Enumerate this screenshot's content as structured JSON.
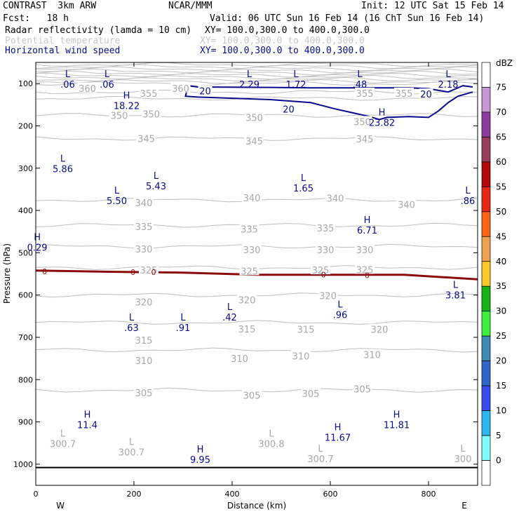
{
  "header": {
    "line1_left": "CONTRAST  3km ARW",
    "line1_mid": "NCAR/MMM",
    "line1_right": "Init: 12 UTC Sat 15 Feb 14",
    "line2_left": "Fcst:   18 h",
    "line2_right": "Valid: 06 UTC Sun 16 Feb 14 (16 ChT Sun 16 Feb 14)",
    "fields": [
      {
        "name": "Radar reflectivity (lamda = 10 cm)",
        "xy": "XY= 100.0,300.0 to 400.0,300.0",
        "color": "#000000"
      },
      {
        "name": "Potential temperature",
        "xy": "XY= 100.0,300.0 to 400.0,300.0",
        "color": "#c8c8c8"
      },
      {
        "name": "Horizontal wind speed",
        "xy": "XY= 100.0,300.0 to 400.0,300.0",
        "color": "#0a0a8c"
      }
    ]
  },
  "chart_data": {
    "type": "contour_cross_section",
    "xlabel": "Distance (km)",
    "ylabel": "Pressure (hPa)",
    "xlim": [
      0,
      900
    ],
    "ylim": [
      1050,
      50
    ],
    "x_ticks": [
      "0",
      "200",
      "400",
      "600",
      "800"
    ],
    "y_ticks": [
      "100",
      "200",
      "300",
      "400",
      "500",
      "600",
      "700",
      "800",
      "900",
      "1000"
    ],
    "x_end_labels": {
      "left": "W",
      "right": "E"
    },
    "surface_pressure": 1008,
    "theta_contours": [
      {
        "label": "360",
        "p": 120
      },
      {
        "label": "355",
        "p": 135
      },
      {
        "label": "350",
        "p": 175
      },
      {
        "label": "345",
        "p": 230
      },
      {
        "label": "340",
        "p": 375
      },
      {
        "label": "335",
        "p": 435
      },
      {
        "label": "330",
        "p": 485
      },
      {
        "label": "325",
        "p": 535
      },
      {
        "label": "320",
        "p": 600
      },
      {
        "label": "315",
        "p": 665
      },
      {
        "label": "310",
        "p": 730
      },
      {
        "label": "305",
        "p": 825
      }
    ],
    "theta_contour_labels": [
      {
        "text": "360",
        "x": 105,
        "p": 111
      },
      {
        "text": "355",
        "x": 230,
        "p": 123
      },
      {
        "text": "360",
        "x": 295,
        "p": 111
      },
      {
        "text": "355",
        "x": 670,
        "p": 123
      },
      {
        "text": "355",
        "x": 750,
        "p": 123
      },
      {
        "text": "350",
        "x": 170,
        "p": 175
      },
      {
        "text": "350",
        "x": 235,
        "p": 172
      },
      {
        "text": "350",
        "x": 445,
        "p": 180
      },
      {
        "text": "350",
        "x": 665,
        "p": 190
      },
      {
        "text": "345",
        "x": 225,
        "p": 230
      },
      {
        "text": "345",
        "x": 445,
        "p": 236
      },
      {
        "text": "345",
        "x": 670,
        "p": 231
      },
      {
        "text": "340",
        "x": 220,
        "p": 382
      },
      {
        "text": "340",
        "x": 440,
        "p": 370
      },
      {
        "text": "340",
        "x": 610,
        "p": 371
      },
      {
        "text": "340",
        "x": 755,
        "p": 386
      },
      {
        "text": "335",
        "x": 220,
        "p": 438
      },
      {
        "text": "335",
        "x": 435,
        "p": 444
      },
      {
        "text": "335",
        "x": 590,
        "p": 441
      },
      {
        "text": "330",
        "x": 220,
        "p": 491
      },
      {
        "text": "330",
        "x": 440,
        "p": 493
      },
      {
        "text": "330",
        "x": 590,
        "p": 493
      },
      {
        "text": "330",
        "x": 670,
        "p": 493
      },
      {
        "text": "325",
        "x": 230,
        "p": 541
      },
      {
        "text": "325",
        "x": 435,
        "p": 543
      },
      {
        "text": "325",
        "x": 580,
        "p": 541
      },
      {
        "text": "325",
        "x": 670,
        "p": 540
      },
      {
        "text": "320",
        "x": 220,
        "p": 616
      },
      {
        "text": "320",
        "x": 430,
        "p": 611
      },
      {
        "text": "320",
        "x": 595,
        "p": 601
      },
      {
        "text": "320",
        "x": 700,
        "p": 681
      },
      {
        "text": "315",
        "x": 220,
        "p": 707
      },
      {
        "text": "315",
        "x": 430,
        "p": 680
      },
      {
        "text": "315",
        "x": 550,
        "p": 681
      },
      {
        "text": "310",
        "x": 220,
        "p": 755
      },
      {
        "text": "310",
        "x": 415,
        "p": 750
      },
      {
        "text": "310",
        "x": 540,
        "p": 744
      },
      {
        "text": "310",
        "x": 685,
        "p": 741
      },
      {
        "text": "305",
        "x": 220,
        "p": 831
      },
      {
        "text": "305",
        "x": 440,
        "p": 837
      },
      {
        "text": "305",
        "x": 560,
        "p": 833
      },
      {
        "text": "305",
        "x": 665,
        "p": 822
      }
    ],
    "wind_contours": [
      {
        "label": "20",
        "points": [
          [
            310,
            105
          ],
          [
            330,
            108
          ],
          [
            480,
            109
          ],
          [
            560,
            110
          ],
          [
            675,
            110
          ],
          [
            760,
            110
          ],
          [
            800,
            112
          ],
          [
            840,
            120
          ],
          [
            870,
            105
          ],
          [
            890,
            108
          ]
        ]
      }
    ],
    "wind_contour_labels": [
      {
        "text": "20",
        "x": 345,
        "p": 117
      },
      {
        "text": "20",
        "x": 515,
        "p": 160
      },
      {
        "text": "20",
        "x": 795,
        "p": 125
      }
    ],
    "reflectivity_zero_line": [
      [
        0,
        542
      ],
      [
        150,
        545
      ],
      [
        300,
        547
      ],
      [
        450,
        552
      ],
      [
        600,
        552
      ],
      [
        750,
        552
      ],
      [
        900,
        563
      ]
    ],
    "reflectivity_zero_labels": [
      {
        "text": "0",
        "x": 18,
        "p": 544
      },
      {
        "text": "0",
        "x": 198,
        "p": 546
      },
      {
        "text": "0",
        "x": 240,
        "p": 546
      },
      {
        "text": "0",
        "x": 586,
        "p": 552
      },
      {
        "text": "0",
        "x": 675,
        "p": 553
      }
    ],
    "extrema": [
      {
        "type": "L",
        "value": ".06",
        "x": 65,
        "p": 85,
        "field": "wind"
      },
      {
        "type": "L",
        "value": ".06",
        "x": 145,
        "p": 85,
        "field": "wind"
      },
      {
        "type": "L",
        "value": "2.29",
        "x": 435,
        "p": 85,
        "field": "wind"
      },
      {
        "type": "L",
        "value": "1.72",
        "x": 530,
        "p": 85,
        "field": "wind"
      },
      {
        "type": "L",
        "value": ".48",
        "x": 660,
        "p": 85,
        "field": "wind"
      },
      {
        "type": "L",
        "value": "2.18",
        "x": 840,
        "p": 85,
        "field": "wind"
      },
      {
        "type": "H",
        "value": "18.22",
        "x": 185,
        "p": 135,
        "field": "wind"
      },
      {
        "type": "H",
        "value": "23.82",
        "x": 705,
        "p": 175,
        "field": "wind"
      },
      {
        "type": "L",
        "value": "5.86",
        "x": 55,
        "p": 285,
        "field": "wind"
      },
      {
        "type": "L",
        "value": "5.43",
        "x": 245,
        "p": 325,
        "field": "wind"
      },
      {
        "type": "L",
        "value": "5.50",
        "x": 165,
        "p": 360,
        "field": "wind"
      },
      {
        "type": "L",
        "value": "1.65",
        "x": 545,
        "p": 330,
        "field": "wind"
      },
      {
        "type": "L",
        "value": ".86",
        "x": 880,
        "p": 360,
        "field": "wind"
      },
      {
        "type": "H",
        "value": "6.71",
        "x": 675,
        "p": 430,
        "field": "wind"
      },
      {
        "type": "H",
        "value": "0.29",
        "x": 3,
        "p": 470,
        "field": "wind"
      },
      {
        "type": "L",
        "value": "3.81",
        "x": 855,
        "p": 583,
        "field": "wind"
      },
      {
        "type": "L",
        "value": ".42",
        "x": 395,
        "p": 635,
        "field": "wind"
      },
      {
        "type": "L",
        "value": ".96",
        "x": 620,
        "p": 630,
        "field": "wind"
      },
      {
        "type": "L",
        "value": ".63",
        "x": 195,
        "p": 660,
        "field": "wind"
      },
      {
        "type": "L",
        "value": ".91",
        "x": 300,
        "p": 660,
        "field": "wind"
      },
      {
        "type": "H",
        "value": "11.4",
        "x": 105,
        "p": 890,
        "field": "wind"
      },
      {
        "type": "H",
        "value": "11.67",
        "x": 615,
        "p": 920,
        "field": "wind"
      },
      {
        "type": "H",
        "value": "11.81",
        "x": 735,
        "p": 890,
        "field": "wind"
      },
      {
        "type": "H",
        "value": "9.95",
        "x": 335,
        "p": 972,
        "field": "wind"
      },
      {
        "type": "L",
        "value": "300.7",
        "x": 55,
        "p": 935,
        "field": "theta"
      },
      {
        "type": "L",
        "value": "300.7",
        "x": 195,
        "p": 955,
        "field": "theta"
      },
      {
        "type": "L",
        "value": "300.8",
        "x": 480,
        "p": 935,
        "field": "theta"
      },
      {
        "type": "L",
        "value": "300.7",
        "x": 580,
        "p": 970,
        "field": "theta"
      },
      {
        "type": "L",
        "value": "300",
        "x": 870,
        "p": 970,
        "field": "theta"
      }
    ]
  },
  "colorbar": {
    "unit": "dBZ",
    "levels": [
      "0",
      "5",
      "10",
      "15",
      "20",
      "25",
      "30",
      "35",
      "40",
      "45",
      "50",
      "55",
      "60",
      "65",
      "70",
      "75"
    ],
    "colors": [
      "#ffffff",
      "#7ffcfc",
      "#2db6f0",
      "#3a4cf0",
      "#2d68c8",
      "#3c8cb4",
      "#3cf03c",
      "#14b414",
      "#fac828",
      "#f0a050",
      "#ff6414",
      "#e62814",
      "#b40a0a",
      "#9b3c5a",
      "#8c3ca0",
      "#c896d2",
      "#ffffff"
    ]
  },
  "colors": {
    "theta": "#c0c0c0",
    "wind": "#0a0a8c",
    "reflectivity": "#8b0a0a"
  }
}
